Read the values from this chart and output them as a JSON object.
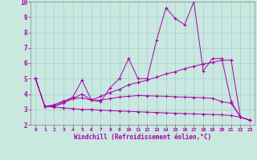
{
  "bg_color": "#c8e8e0",
  "line_color": "#aa00aa",
  "grid_color": "#aacccc",
  "xlabel": "Windchill (Refroidissement éolien,°C)",
  "xlim": [
    -0.5,
    23.5
  ],
  "ylim": [
    2,
    10
  ],
  "yticks": [
    2,
    3,
    4,
    5,
    6,
    7,
    8,
    9,
    10
  ],
  "xticks": [
    0,
    1,
    2,
    3,
    4,
    5,
    6,
    7,
    8,
    9,
    10,
    11,
    12,
    13,
    14,
    15,
    16,
    17,
    18,
    19,
    20,
    21,
    22,
    23
  ],
  "curves": [
    {
      "x": [
        0,
        1,
        2,
        3,
        4,
        5,
        6,
        7,
        8,
        9,
        10,
        11,
        12,
        13,
        14,
        15,
        16,
        17,
        18,
        19,
        20,
        21,
        22,
        23
      ],
      "y": [
        5.0,
        3.2,
        3.2,
        3.5,
        3.8,
        4.9,
        3.6,
        3.5,
        4.4,
        5.0,
        6.3,
        5.0,
        5.0,
        7.5,
        9.6,
        8.9,
        8.5,
        10.0,
        5.5,
        6.3,
        6.3,
        3.5,
        2.5,
        2.3
      ]
    },
    {
      "x": [
        0,
        1,
        2,
        3,
        4,
        5,
        6,
        7,
        8,
        9,
        10,
        11,
        12,
        13,
        14,
        15,
        16,
        17,
        18,
        19,
        20,
        21,
        22,
        23
      ],
      "y": [
        5.0,
        3.2,
        3.3,
        3.55,
        3.7,
        3.75,
        3.6,
        3.85,
        4.1,
        4.3,
        4.6,
        4.75,
        4.9,
        5.1,
        5.3,
        5.45,
        5.65,
        5.8,
        5.95,
        6.05,
        6.2,
        6.2,
        2.5,
        2.3
      ]
    },
    {
      "x": [
        0,
        1,
        2,
        3,
        4,
        5,
        6,
        7,
        8,
        9,
        10,
        11,
        12,
        13,
        14,
        15,
        16,
        17,
        18,
        19,
        20,
        21,
        22,
        23
      ],
      "y": [
        5.0,
        3.2,
        3.2,
        3.4,
        3.7,
        4.0,
        3.6,
        3.6,
        3.7,
        3.8,
        3.85,
        3.9,
        3.88,
        3.87,
        3.85,
        3.82,
        3.8,
        3.78,
        3.76,
        3.72,
        3.5,
        3.4,
        2.5,
        2.3
      ]
    },
    {
      "x": [
        0,
        1,
        2,
        3,
        4,
        5,
        6,
        7,
        8,
        9,
        10,
        11,
        12,
        13,
        14,
        15,
        16,
        17,
        18,
        19,
        20,
        21,
        22,
        23
      ],
      "y": [
        5.0,
        3.2,
        3.15,
        3.1,
        3.05,
        3.0,
        3.0,
        2.95,
        2.92,
        2.9,
        2.87,
        2.85,
        2.82,
        2.8,
        2.77,
        2.75,
        2.73,
        2.71,
        2.69,
        2.67,
        2.65,
        2.6,
        2.5,
        2.3
      ]
    }
  ]
}
